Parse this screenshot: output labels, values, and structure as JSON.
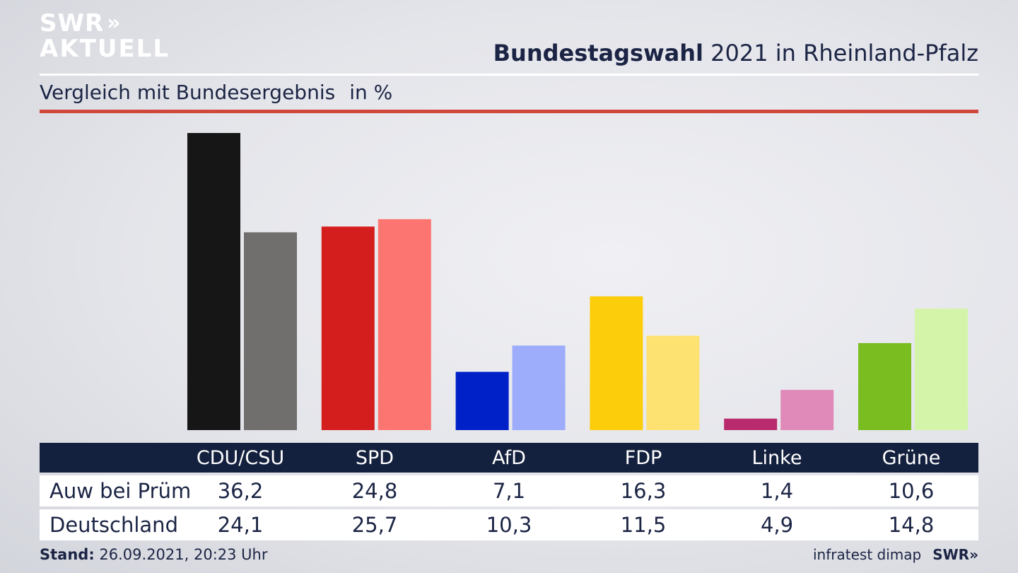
{
  "brand": {
    "line1": "SWR",
    "arrows": "»",
    "line2": "AKTUELL"
  },
  "header": {
    "title_bold": "Bundestagswahl",
    "title_rest": " 2021 in Rheinland-Pfalz",
    "subtitle": "Vergleich mit Bundesergebnis",
    "unit": "in %"
  },
  "chart_data": {
    "type": "bar",
    "categories": [
      "CDU/CSU",
      "SPD",
      "AfD",
      "FDP",
      "Linke",
      "Grüne"
    ],
    "series": [
      {
        "name": "Auw bei Prüm",
        "values": [
          36.2,
          24.8,
          7.1,
          16.3,
          1.4,
          10.6
        ],
        "colors": [
          "#161616",
          "#d41d1d",
          "#0021c7",
          "#fccd0a",
          "#b92b6e",
          "#79bd21"
        ]
      },
      {
        "name": "Deutschland",
        "values": [
          24.1,
          25.7,
          10.3,
          11.5,
          4.9,
          14.8
        ],
        "colors": [
          "#706f6d",
          "#fd7570",
          "#9dacfb",
          "#fde272",
          "#df8ab8",
          "#d4f5a9"
        ]
      }
    ],
    "ylim": [
      0,
      37
    ],
    "grid": false
  },
  "table": {
    "headers": [
      "CDU/CSU",
      "SPD",
      "AfD",
      "FDP",
      "Linke",
      "Grüne"
    ],
    "rows": [
      {
        "label": "Auw bei Prüm",
        "values": [
          "36,2",
          "24,8",
          "7,1",
          "16,3",
          "1,4",
          "10,6"
        ]
      },
      {
        "label": "Deutschland",
        "values": [
          "24,1",
          "25,7",
          "10,3",
          "11,5",
          "4,9",
          "14,8"
        ]
      }
    ]
  },
  "footer": {
    "stand_label": "Stand:",
    "stand_value": " 26.09.2021, 20:23 Uhr",
    "source": "infratest dimap",
    "brand": "SWR»"
  },
  "colors": {
    "navy": "#14213e",
    "accent_red": "#d0483c",
    "text": "#1b2444"
  }
}
